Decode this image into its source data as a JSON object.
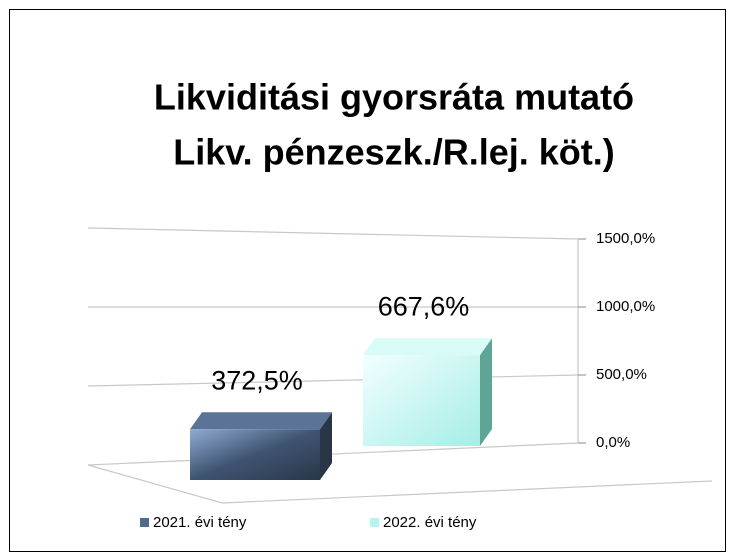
{
  "chart_data": {
    "type": "bar3d",
    "title": [
      "Likviditási gyorsráta mutató",
      "Likv. pénzeszk./R.lej. köt.)"
    ],
    "categories": [
      null
    ],
    "series": [
      {
        "name": "2021. évi tény",
        "color": "#4f6a8f",
        "values": [
          372.5
        ],
        "value_labels": [
          "372,5%"
        ]
      },
      {
        "name": "2022. évi tény",
        "color": "#b5f5ef",
        "values": [
          667.6
        ],
        "value_labels": [
          "667,6%"
        ]
      }
    ],
    "ylim": [
      0,
      1500
    ],
    "yticks": [
      {
        "value": 0,
        "label": "0,0%"
      },
      {
        "value": 500,
        "label": "500,0%"
      },
      {
        "value": 1000,
        "label": "1000,0%"
      },
      {
        "value": 1500,
        "label": "1500,0%"
      }
    ],
    "grid": true,
    "legend": "bottom"
  }
}
